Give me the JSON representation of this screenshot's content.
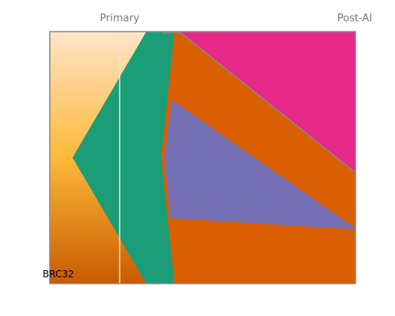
{
  "chart_data": {
    "type": "area",
    "subtype": "fish-plot",
    "x": [
      "Primary",
      "Post-AI"
    ],
    "x_values": [
      0,
      1
    ],
    "ylim": [
      0,
      1
    ],
    "sample_label": "BRC32",
    "legend": "none",
    "grid": false,
    "colors": {
      "gradient_top": "#FFE4C8",
      "gradient_mid": "#FDB93A",
      "gradient_bottom": "#C95A00",
      "marker_line": "#E4E4E4",
      "frame": "#888888"
    },
    "series": [
      {
        "key": "clone1",
        "color": "#1B9E77",
        "start_x": -0.2,
        "start_y": 0.5,
        "upper": [
          [
            0.113,
            1.0
          ],
          [
            1.0,
            1.0
          ]
        ],
        "lower": [
          [
            0.113,
            0.0
          ],
          [
            1.0,
            0.0
          ]
        ]
      },
      {
        "key": "clone2",
        "color": "#D95F02",
        "start_x": 0.176,
        "start_y": 0.5,
        "upper": [
          [
            0.232,
            1.0
          ],
          [
            1.0,
            1.0
          ]
        ],
        "lower": [
          [
            0.232,
            0.0
          ],
          [
            1.0,
            0.0
          ]
        ]
      },
      {
        "key": "clone3",
        "color": "#E7298A",
        "start_x": 0.18,
        "start_y": 0.995,
        "upper": [
          [
            0.26,
            1.0
          ],
          [
            1.0,
            1.0
          ]
        ],
        "lower": [
          [
            0.26,
            0.995
          ],
          [
            1.0,
            0.44
          ]
        ]
      },
      {
        "key": "clone4",
        "color": "#7570B3",
        "start_x": 0.19,
        "start_y": 0.5,
        "upper": [
          [
            0.22,
            0.73
          ],
          [
            1.0,
            0.22
          ]
        ],
        "lower": [
          [
            0.214,
            0.26
          ],
          [
            1.0,
            0.215
          ]
        ]
      }
    ]
  }
}
